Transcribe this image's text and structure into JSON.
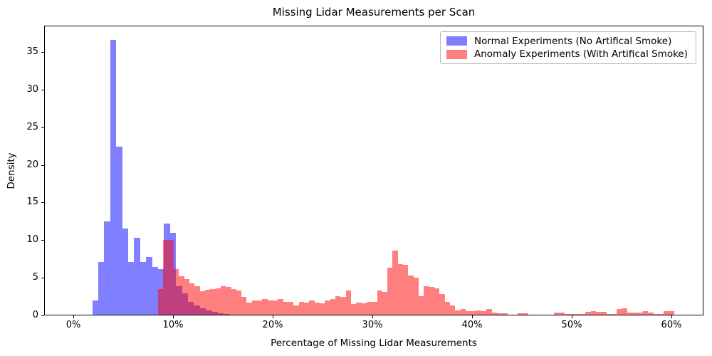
{
  "title": "Missing Lidar Measurements per Scan",
  "axes": {
    "xlabel": "Percentage of Missing Lidar Measurements",
    "ylabel": "Density",
    "x_tick_labels": [
      "0%",
      "10%",
      "20%",
      "30%",
      "40%",
      "50%",
      "60%"
    ],
    "x_tick_values": [
      0,
      10,
      20,
      30,
      40,
      50,
      60
    ],
    "y_tick_labels": [
      "0",
      "5",
      "10",
      "15",
      "20",
      "25",
      "30",
      "35"
    ],
    "y_tick_values": [
      0,
      5,
      10,
      15,
      20,
      25,
      30,
      35
    ]
  },
  "legend": {
    "items": [
      {
        "label": "Normal Experiments (No Artifical Smoke)",
        "color": "#0000ff"
      },
      {
        "label": "Anomaly Experiments (With Artifical Smoke)",
        "color": "#ff0000"
      }
    ]
  },
  "chart_data": {
    "type": "bar",
    "subtype": "overlaid-histogram",
    "title": "Missing Lidar Measurements per Scan",
    "xlabel": "Percentage of Missing Lidar Measurements",
    "ylabel": "Density",
    "xlim_pct": [
      -2.9,
      63.2
    ],
    "ylim": [
      0,
      38.5
    ],
    "grid": false,
    "legend_position": "upper right",
    "bar_alpha": 0.5,
    "series": [
      {
        "name": "Normal Experiments (No Artifical Smoke)",
        "color": "#0000ff",
        "bin_start_pct": 1.9,
        "bin_width_pct": 0.6,
        "densities": [
          1.9,
          7.0,
          12.4,
          36.5,
          22.3,
          11.4,
          7.0,
          10.2,
          7.0,
          7.7,
          6.3,
          6.1,
          12.1,
          10.9,
          3.8,
          2.8,
          1.7,
          1.25,
          0.85,
          0.55,
          0.35,
          0.2,
          0.1
        ]
      },
      {
        "name": "Anomaly Experiments (With Artifical Smoke)",
        "color": "#ff0000",
        "bin_start_pct": 8.5,
        "bin_width_pct": 0.523,
        "densities": [
          3.4,
          9.9,
          9.9,
          6.1,
          5.1,
          4.7,
          4.2,
          3.75,
          3.1,
          3.3,
          3.4,
          3.5,
          3.8,
          3.65,
          3.4,
          3.2,
          2.4,
          1.6,
          1.9,
          1.9,
          2.05,
          1.9,
          1.9,
          2.05,
          1.73,
          1.73,
          1.25,
          1.73,
          1.57,
          1.9,
          1.57,
          1.47,
          1.9,
          2.05,
          2.5,
          2.4,
          3.2,
          1.4,
          1.6,
          1.5,
          1.7,
          1.7,
          3.2,
          3.0,
          6.2,
          8.55,
          6.7,
          6.6,
          5.25,
          4.9,
          2.5,
          3.8,
          3.65,
          3.5,
          2.7,
          1.7,
          1.25,
          0.6,
          0.75,
          0.45,
          0.45,
          0.6,
          0.45,
          0.75,
          0.3,
          0.2,
          0.15,
          0.03,
          0.03,
          0.22,
          0.22,
          0.03,
          0.02,
          0.02,
          0.02,
          0.02,
          0.29,
          0.29,
          0.05,
          0.05,
          0.1,
          0.1,
          0.38,
          0.45,
          0.38,
          0.38,
          0.1,
          0.1,
          0.77,
          0.83,
          0.29,
          0.29,
          0.29,
          0.45,
          0.29,
          0.1,
          0.05,
          0.45,
          0.45
        ]
      }
    ]
  }
}
